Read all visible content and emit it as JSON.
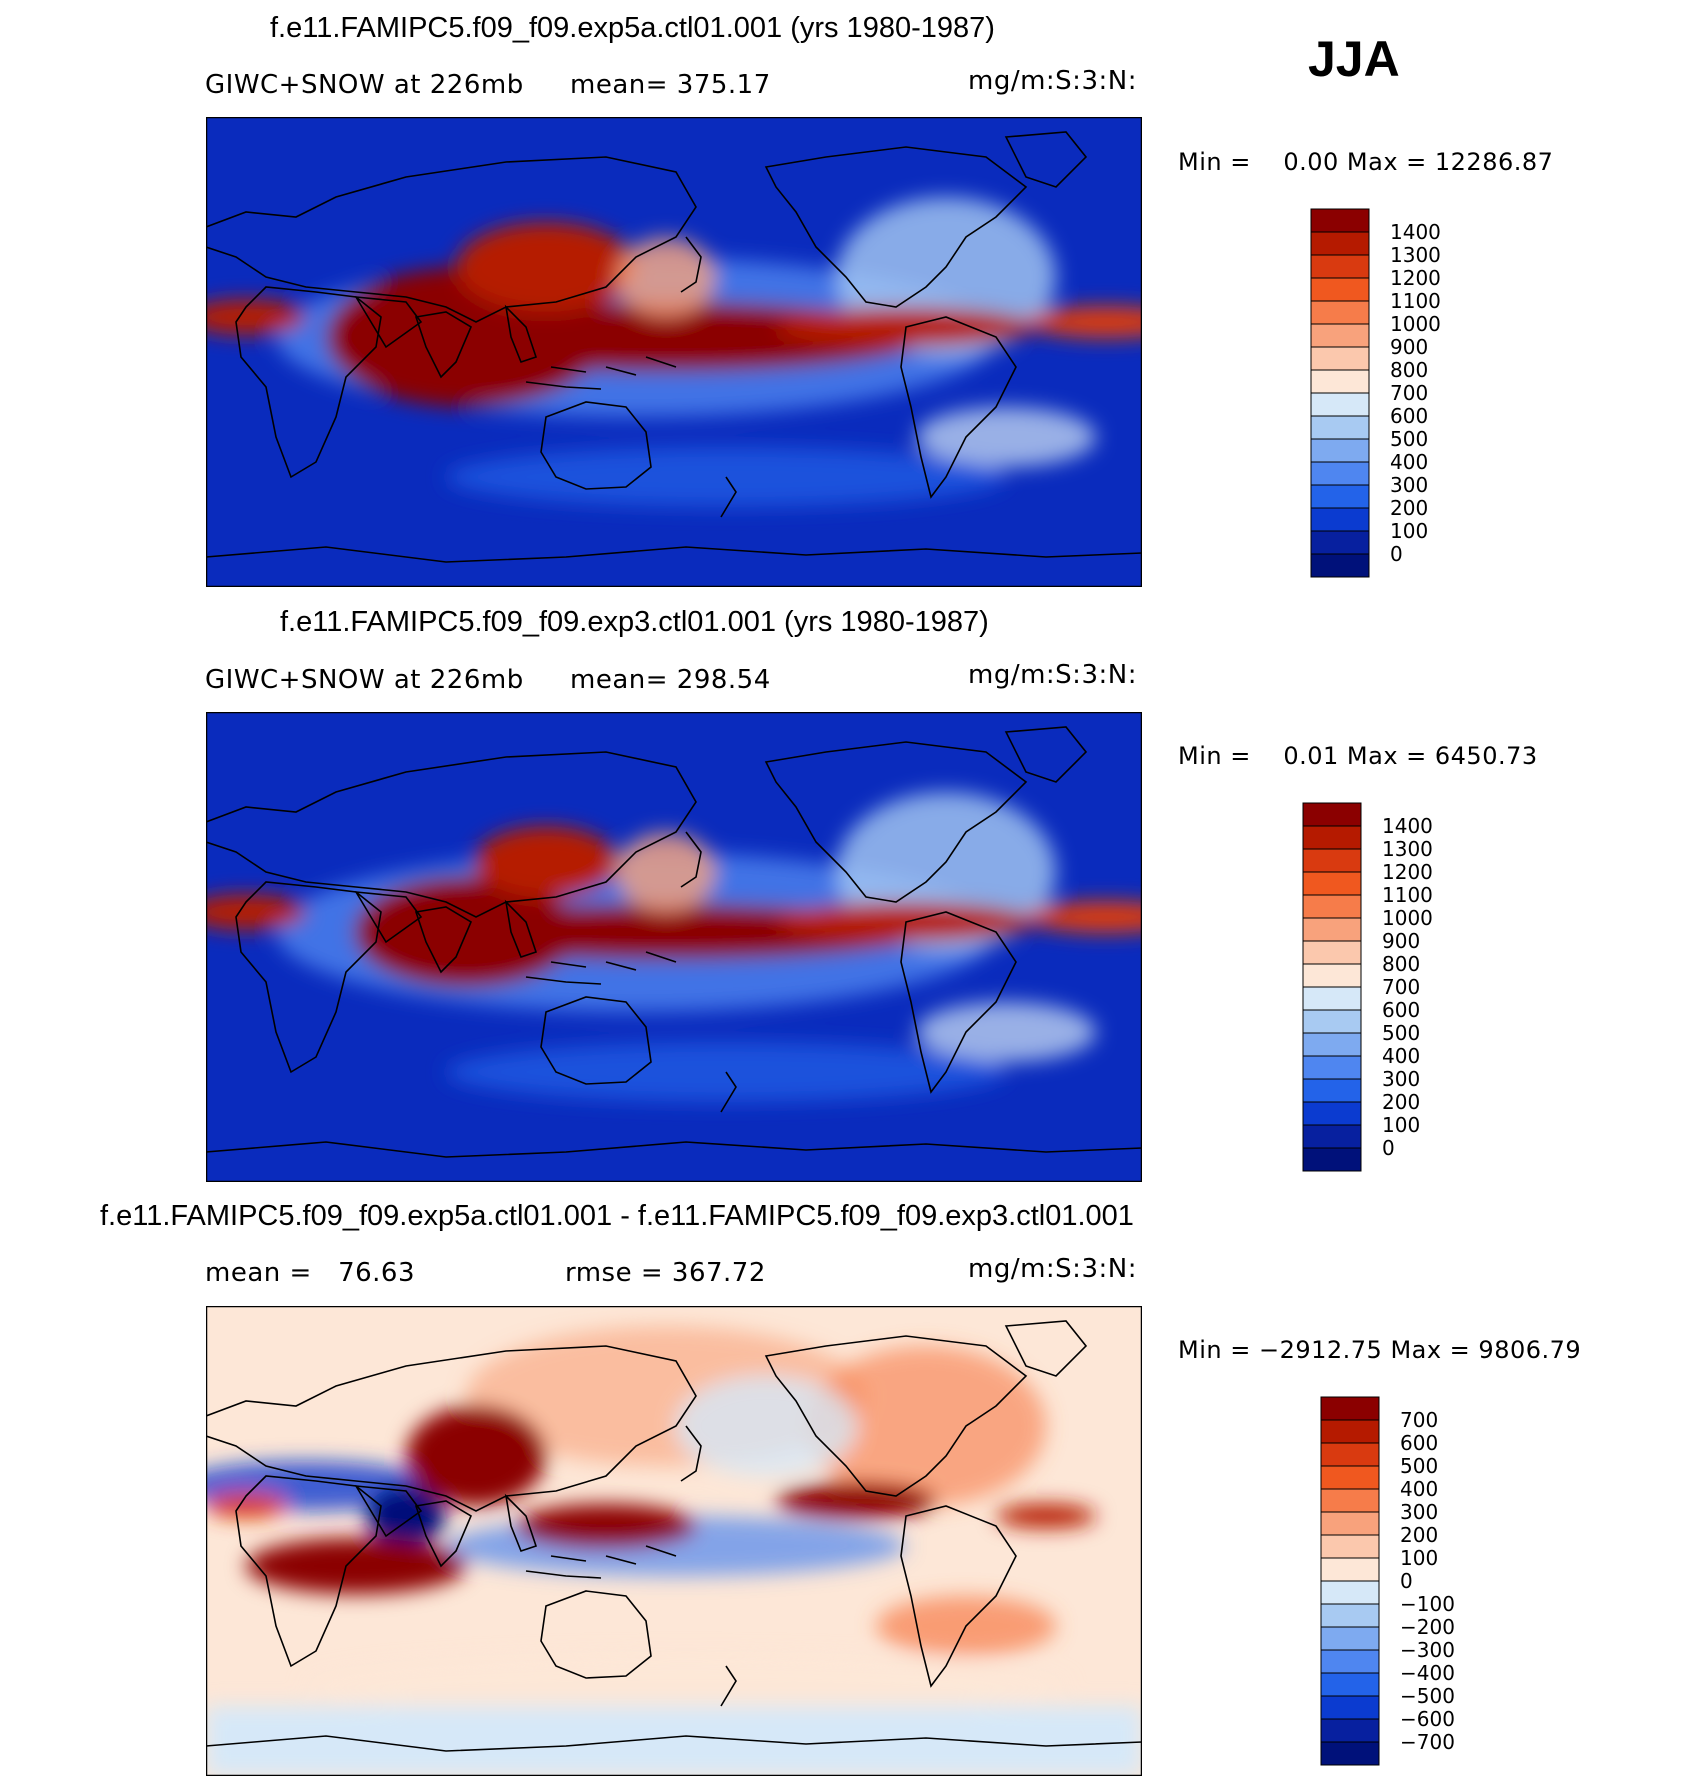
{
  "season": "JJA",
  "panels": [
    {
      "title": "f.e11.FAMIPC5.f09_f09.exp5a.ctl01.001 (yrs 1980-1987)",
      "left_label": "GIWC+SNOW at 226mb",
      "mid_label": "mean= 375.17",
      "units": "mg/m:S:3:N:",
      "minmax": "Min =    0.00 Max = 12286.87",
      "colorbar": {
        "labels": [
          "1400",
          "1300",
          "1200",
          "1100",
          "1000",
          "900",
          "800",
          "700",
          "600",
          "500",
          "400",
          "300",
          "200",
          "100",
          "0"
        ],
        "colors": [
          "#8b0000",
          "#b51a00",
          "#d93a10",
          "#f0581f",
          "#f67c4a",
          "#f8a27c",
          "#fbc8ad",
          "#fde7d7",
          "#d6e8f8",
          "#a8caf2",
          "#7eaaf0",
          "#4f86f0",
          "#2363e9",
          "#0b3bd0",
          "#07209f",
          "#00117a"
        ]
      },
      "map": {
        "base": "#0a2bbd",
        "intensity": 1.0
      }
    },
    {
      "title": "f.e11.FAMIPC5.f09_f09.exp3.ctl01.001 (yrs 1980-1987)",
      "left_label": "GIWC+SNOW at 226mb",
      "mid_label": "mean= 298.54",
      "units": "mg/m:S:3:N:",
      "minmax": "Min =    0.01 Max = 6450.73",
      "colorbar": {
        "labels": [
          "1400",
          "1300",
          "1200",
          "1100",
          "1000",
          "900",
          "800",
          "700",
          "600",
          "500",
          "400",
          "300",
          "200",
          "100",
          "0"
        ],
        "colors": [
          "#8b0000",
          "#b51a00",
          "#d93a10",
          "#f0581f",
          "#f67c4a",
          "#f8a27c",
          "#fbc8ad",
          "#fde7d7",
          "#d6e8f8",
          "#a8caf2",
          "#7eaaf0",
          "#4f86f0",
          "#2363e9",
          "#0b3bd0",
          "#07209f",
          "#00117a"
        ]
      },
      "map": {
        "base": "#0a2bbd",
        "intensity": 0.8
      }
    },
    {
      "title": "f.e11.FAMIPC5.f09_f09.exp5a.ctl01.001 - f.e11.FAMIPC5.f09_f09.exp3.ctl01.001",
      "left_label": "mean =   76.63",
      "mid_label": "rmse = 367.72",
      "units": "mg/m:S:3:N:",
      "minmax": "Min = −2912.75 Max = 9806.79",
      "colorbar": {
        "labels": [
          "700",
          "600",
          "500",
          "400",
          "300",
          "200",
          "100",
          "0",
          "−100",
          "−200",
          "−300",
          "−400",
          "−500",
          "−600",
          "−700"
        ],
        "colors": [
          "#8b0000",
          "#b51a00",
          "#d93a10",
          "#f0581f",
          "#f67c4a",
          "#f8a27c",
          "#fbc8ad",
          "#fde7d7",
          "#d6e8f8",
          "#a8caf2",
          "#7eaaf0",
          "#4f86f0",
          "#2363e9",
          "#0b3bd0",
          "#07209f",
          "#00117a"
        ]
      },
      "map": {
        "base": "#fde7d7",
        "intensity": 1.0
      }
    }
  ]
}
